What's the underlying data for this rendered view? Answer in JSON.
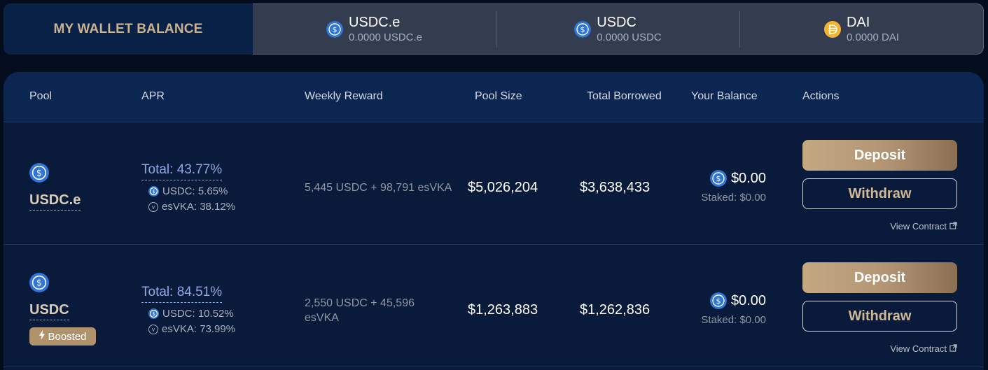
{
  "wallet": {
    "title": "MY WALLET BALANCE",
    "tokens": [
      {
        "icon": "usdc-icon",
        "name": "USDC.e",
        "amount": "0.0000 USDC.e"
      },
      {
        "icon": "usdc-icon",
        "name": "USDC",
        "amount": "0.0000 USDC"
      },
      {
        "icon": "dai-icon",
        "name": "DAI",
        "amount": "0.0000 DAI"
      }
    ]
  },
  "table": {
    "headers": {
      "pool": "Pool",
      "apr": "APR",
      "weekly_reward": "Weekly Reward",
      "pool_size": "Pool Size",
      "total_borrowed": "Total Borrowed",
      "your_balance": "Your Balance",
      "actions": "Actions"
    },
    "rows": [
      {
        "pool": "USDC.e",
        "apr_total": "Total: 43.77%",
        "apr_usdc": "USDC: 5.65%",
        "apr_esvka": "esVKA: 38.12%",
        "weekly_reward": "5,445 USDC + 98,791 esVKA",
        "pool_size": "$5,026,204",
        "total_borrowed": "$3,638,433",
        "balance": "$0.00",
        "staked": "Staked: $0.00",
        "deposit_label": "Deposit",
        "withdraw_label": "Withdraw",
        "contract_label": "View Contract"
      },
      {
        "pool": "USDC",
        "badge": "Boosted",
        "apr_total": "Total: 84.51%",
        "apr_usdc": "USDC: 10.52%",
        "apr_esvka": "esVKA: 73.99%",
        "weekly_reward": "2,550 USDC + 45,596 esVKA",
        "pool_size": "$1,263,883",
        "total_borrowed": "$1,262,836",
        "balance": "$0.00",
        "staked": "Staked: $0.00",
        "deposit_label": "Deposit",
        "withdraw_label": "Withdraw",
        "contract_label": "View Contract"
      }
    ]
  },
  "colors": {
    "accent_gold": "#c4a983",
    "apr_blue": "#8ea9e4",
    "usdc_blue": "#2f74d6",
    "dai_yellow": "#f4b430"
  }
}
